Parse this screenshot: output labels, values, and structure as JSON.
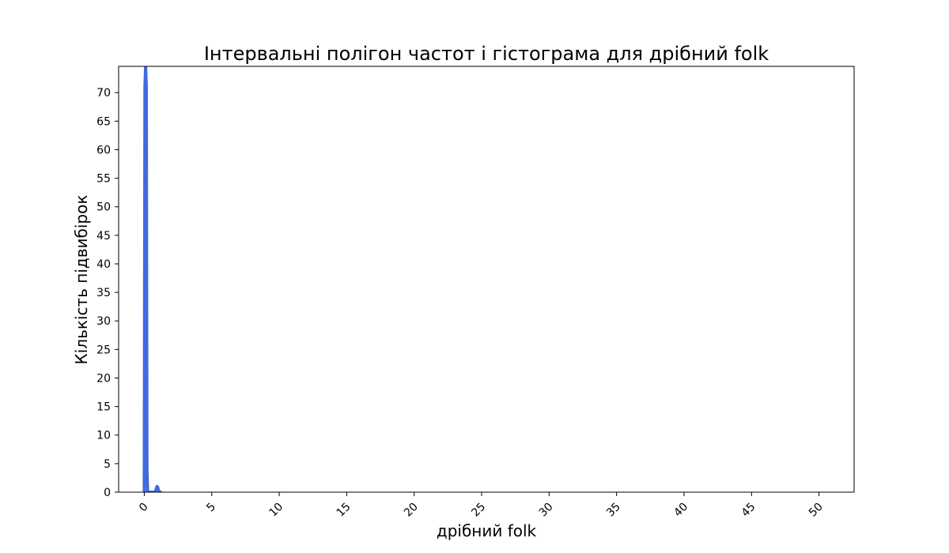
{
  "chart_data": {
    "type": "line",
    "title": "Інтервальні полігон частот і гістограма для дрібний folk",
    "xlabel": "дрібний folk",
    "ylabel": "Кількість підвибірок",
    "xlim": [
      -1.9,
      52.6
    ],
    "ylim": [
      0,
      74.6
    ],
    "xticks": [
      "0",
      "5",
      "10",
      "15",
      "20",
      "25",
      "30",
      "35",
      "40",
      "45",
      "50"
    ],
    "yticks": [
      "0",
      "5",
      "10",
      "15",
      "20",
      "25",
      "30",
      "35",
      "40",
      "45",
      "50",
      "55",
      "60",
      "65",
      "70"
    ],
    "grid": false,
    "legend": "none",
    "series": [
      {
        "color": "#4169e1",
        "x": [
          0.0,
          0.05,
          0.1,
          0.15,
          0.2,
          0.25,
          0.3,
          0.4,
          0.5,
          0.6,
          0.7,
          0.8,
          0.85,
          0.9,
          0.95,
          1.0,
          1.05,
          1.1,
          1.2
        ],
        "y": [
          0,
          71,
          74.6,
          71,
          4,
          0,
          0,
          0,
          0,
          0,
          0,
          0,
          0.3,
          0.7,
          1.0,
          0.8,
          0.4,
          0,
          0
        ]
      }
    ]
  }
}
